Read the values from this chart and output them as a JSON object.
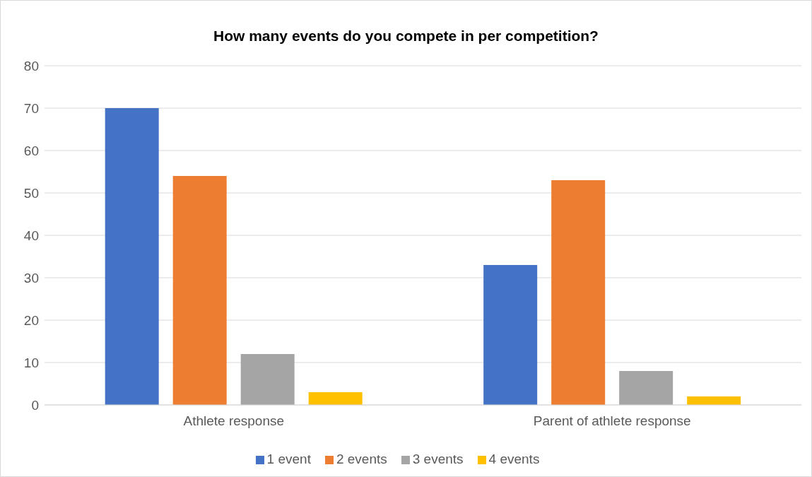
{
  "chart_data": {
    "type": "bar",
    "title": "How many events do you compete in per competition?",
    "categories": [
      "Athlete response",
      "Parent of athlete response"
    ],
    "series": [
      {
        "name": "1 event",
        "color": "#4472c4",
        "values": [
          70,
          33
        ]
      },
      {
        "name": "2 events",
        "color": "#ed7d31",
        "values": [
          54,
          53
        ]
      },
      {
        "name": "3 events",
        "color": "#a5a5a5",
        "values": [
          12,
          8
        ]
      },
      {
        "name": "4 events",
        "color": "#ffc000",
        "values": [
          3,
          2
        ]
      }
    ],
    "ylim": [
      0,
      80
    ],
    "yticks": [
      0,
      10,
      20,
      30,
      40,
      50,
      60,
      70,
      80
    ],
    "grid": "y",
    "legend": "bottom"
  }
}
